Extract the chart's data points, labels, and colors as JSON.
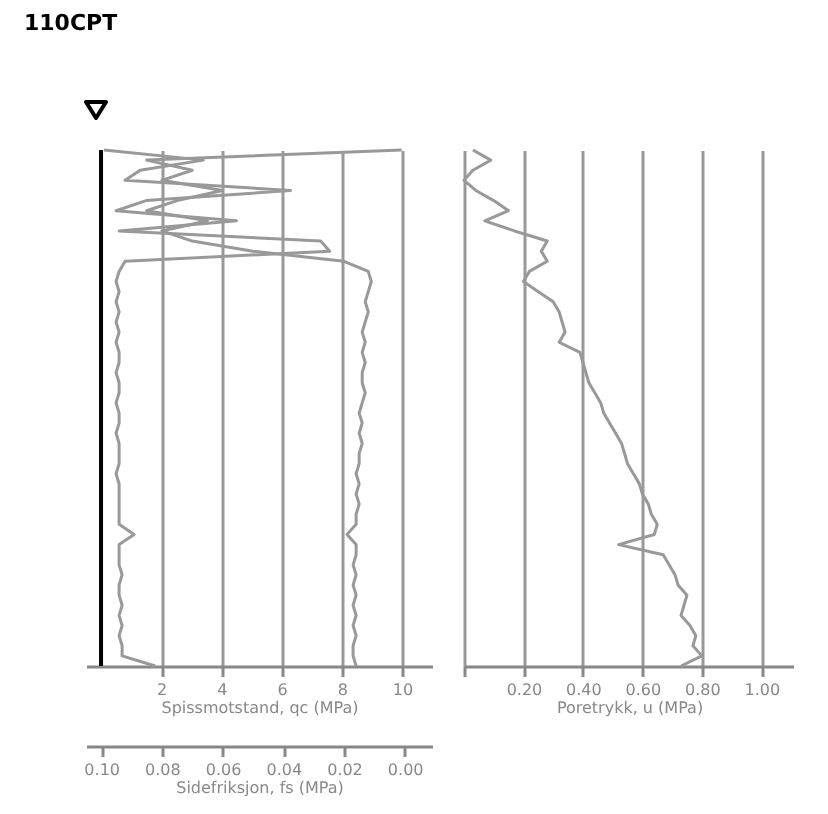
{
  "chart_data": [
    {
      "type": "line",
      "title": "110CPT",
      "orientation": "horizontal",
      "grid": "x",
      "categories": [
        null,
        null,
        null,
        null,
        null,
        null,
        null,
        null,
        null,
        null,
        null,
        null,
        null,
        null,
        null,
        null,
        null,
        null,
        null,
        null,
        null,
        null,
        null,
        null,
        null,
        null,
        null,
        null,
        null,
        null,
        null,
        null,
        null,
        null,
        null,
        null,
        null,
        null,
        null,
        null,
        null,
        null,
        null,
        null,
        null,
        null,
        null,
        null,
        null,
        null,
        null,
        null
      ],
      "xlabel": "Spissmotstand, qc (MPa)",
      "xlim": [
        -0.5,
        11
      ],
      "xticks": [
        2,
        4,
        6,
        8,
        10
      ],
      "x2label": "Sidefriksjon, fs (MPa)",
      "x2lim": [
        0.105,
        -0.009
      ],
      "x2ticks": [
        {
          "value": 0.1,
          "label": "0.10"
        },
        {
          "value": 0.08,
          "label": "0.08"
        },
        {
          "value": 0.06,
          "label": "0.06"
        },
        {
          "value": 0.04,
          "label": "0.04"
        },
        {
          "value": 0.02,
          "label": "0.02"
        },
        {
          "value": 0,
          "label": "0.00"
        }
      ],
      "ref_lines": [
        {
          "axis": "x",
          "value": 0,
          "color": "#000000"
        }
      ],
      "series": [
        {
          "color": "#999999",
          "values": [
            0.1,
            3.4,
            1.3,
            0.8,
            6.3,
            1.5,
            0.5,
            4.5,
            0.6,
            7.3,
            7.6,
            0.8,
            0.6,
            0.5,
            0.6,
            0.5,
            0.6,
            0.5,
            0.6,
            0.5,
            0.6,
            0.6,
            0.5,
            0.6,
            0.6,
            0.5,
            0.6,
            0.6,
            0.5,
            0.6,
            0.6,
            0.6,
            0.5,
            0.6,
            0.6,
            0.6,
            0.6,
            0.6,
            1.1,
            0.6,
            0.6,
            0.6,
            0.7,
            0.6,
            0.6,
            0.7,
            0.6,
            0.7,
            0.6,
            0.7,
            0.7,
            1.8
          ]
        },
        {
          "color": "#999999",
          "axis": "x2",
          "values": [
            0.001,
            0.085,
            0.07,
            0.08,
            0.06,
            0.075,
            0.085,
            0.065,
            0.08,
            0.07,
            0.05,
            0.02,
            0.012,
            0.011,
            0.012,
            0.013,
            0.012,
            0.013,
            0.014,
            0.013,
            0.014,
            0.013,
            0.014,
            0.014,
            0.013,
            0.014,
            0.015,
            0.014,
            0.015,
            0.014,
            0.015,
            0.015,
            0.016,
            0.015,
            0.016,
            0.015,
            0.016,
            0.016,
            0.019,
            0.016,
            0.016,
            0.017,
            0.016,
            0.017,
            0.016,
            0.017,
            0.016,
            0.017,
            0.016,
            0.017,
            0.017,
            0.016
          ]
        }
      ]
    },
    {
      "type": "line",
      "orientation": "horizontal",
      "grid": "x",
      "categories": [
        null,
        null,
        null,
        null,
        null,
        null,
        null,
        null,
        null,
        null,
        null,
        null,
        null,
        null,
        null,
        null,
        null,
        null,
        null,
        null,
        null,
        null,
        null,
        null,
        null,
        null,
        null,
        null,
        null,
        null,
        null,
        null,
        null,
        null,
        null,
        null,
        null,
        null,
        null,
        null,
        null,
        null,
        null,
        null,
        null,
        null,
        null,
        null,
        null,
        null,
        null,
        null
      ],
      "xlabel": "Poretrykk, u (MPa)",
      "xlim": [
        0,
        1.11
      ],
      "xticks": [
        {
          "value": 0,
          "label": null
        },
        {
          "value": 0.2,
          "label": "0.20"
        },
        {
          "value": 0.4,
          "label": "0.40"
        },
        {
          "value": 0.6,
          "label": "0.60"
        },
        {
          "value": 0.8,
          "label": "0.80"
        },
        {
          "value": 1,
          "label": "1.00"
        }
      ],
      "series": [
        {
          "color": "#999999",
          "values": [
            0.03,
            0.09,
            0.03,
            0.0,
            0.04,
            0.1,
            0.15,
            0.07,
            0.17,
            0.28,
            0.26,
            0.28,
            0.22,
            0.2,
            0.25,
            0.3,
            0.32,
            0.33,
            0.34,
            0.32,
            0.39,
            0.4,
            0.41,
            0.42,
            0.44,
            0.46,
            0.47,
            0.49,
            0.51,
            0.53,
            0.54,
            0.55,
            0.57,
            0.59,
            0.6,
            0.62,
            0.63,
            0.65,
            0.64,
            0.52,
            0.67,
            0.69,
            0.71,
            0.72,
            0.75,
            0.74,
            0.73,
            0.76,
            0.78,
            0.77,
            0.8,
            0.73
          ]
        }
      ]
    }
  ]
}
